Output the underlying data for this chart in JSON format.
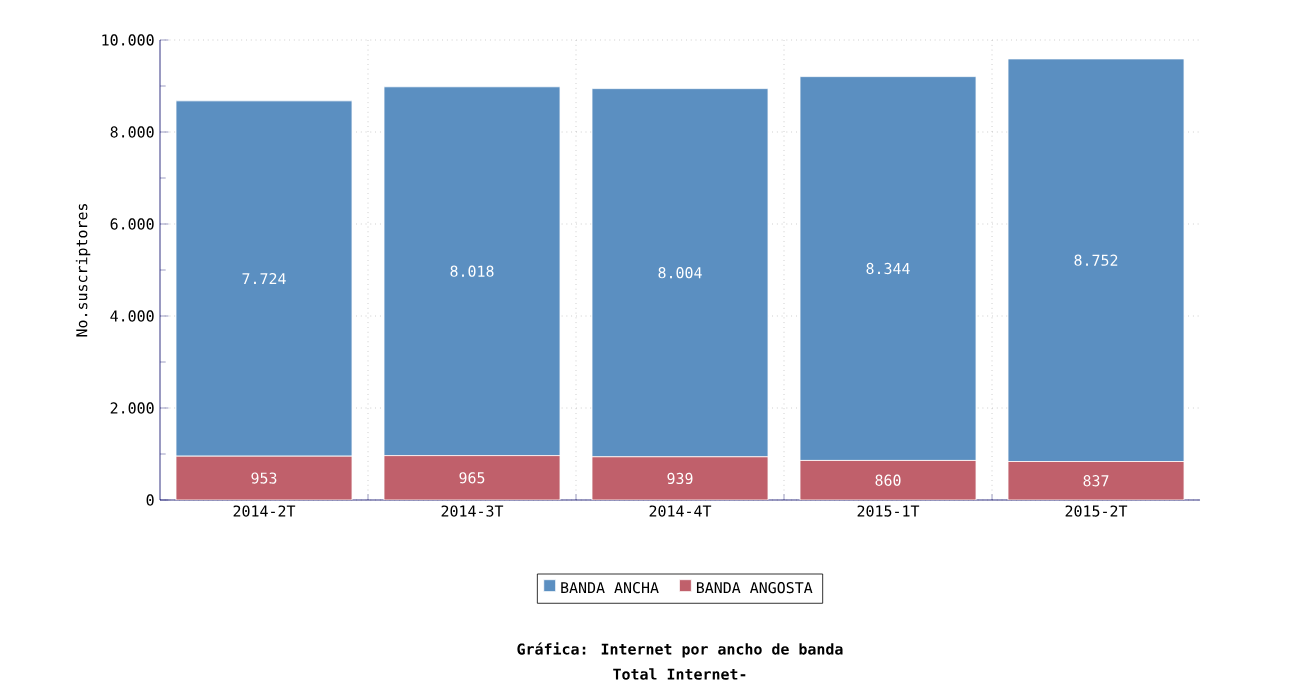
{
  "chart_data": {
    "type": "bar",
    "stacked": true,
    "title": "Gráfica: Internet por ancho de banda",
    "subtitle": "Total Internet-",
    "ylabel": "No.suscriptores",
    "categories": [
      "2014-2T",
      "2014-3T",
      "2014-4T",
      "2015-1T",
      "2015-2T"
    ],
    "series": [
      {
        "name": "BANDA ANGOSTA",
        "color": "#c0606b",
        "values": [
          953,
          965,
          939,
          860,
          837
        ],
        "value_labels": [
          "953",
          "965",
          "939",
          "860",
          "837"
        ]
      },
      {
        "name": "BANDA ANCHA",
        "color": "#5b8fc1",
        "values": [
          7724,
          8018,
          8004,
          8344,
          8752
        ],
        "value_labels": [
          "7.724",
          "8.018",
          "8.004",
          "8.344",
          "8.752"
        ]
      }
    ],
    "ylim": [
      0,
      10000
    ],
    "yticks": [
      {
        "value": 0,
        "label": "0"
      },
      {
        "value": 2000,
        "label": "2.000"
      },
      {
        "value": 4000,
        "label": "4.000"
      },
      {
        "value": 6000,
        "label": "6.000"
      },
      {
        "value": 8000,
        "label": "8.000"
      },
      {
        "value": 10000,
        "label": "10.000"
      }
    ],
    "grid": true,
    "legend": "bottom"
  }
}
